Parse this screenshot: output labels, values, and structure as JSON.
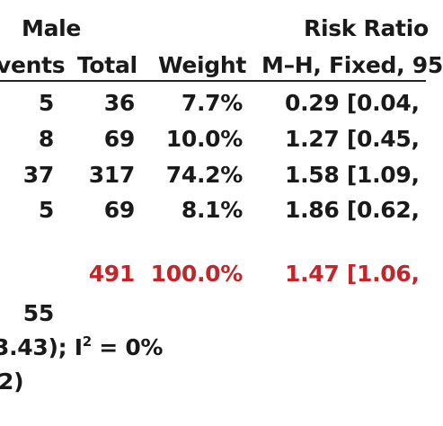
{
  "header": {
    "group_male": "Male",
    "risk_ratio": "Risk Ratio",
    "col_events": "vents",
    "col_total": "Total",
    "col_weight": "Weight",
    "col_method": "M–H, Fixed, 95"
  },
  "rows": [
    {
      "events": "5",
      "total": "36",
      "weight": "7.7%",
      "rr": "0.29 [0.04,"
    },
    {
      "events": "8",
      "total": "69",
      "weight": "10.0%",
      "rr": "1.27 [0.45,"
    },
    {
      "events": "37",
      "total": "317",
      "weight": "74.2%",
      "rr": "1.58 [1.09,"
    },
    {
      "events": "5",
      "total": "69",
      "weight": "8.1%",
      "rr": "1.86 [0.62,"
    }
  ],
  "total_row": {
    "total": "491",
    "weight": "100.0%",
    "rr": "1.47 [1.06,"
  },
  "footer": {
    "events_total": "55",
    "heterogeneity_prefix": "3.43); I",
    "heterogeneity_sup": "2",
    "heterogeneity_suffix": " = 0%",
    "overall_effect": "2)"
  },
  "colors": {
    "text": "#1a1a1a",
    "total_highlight": "#c0262b",
    "rule": "#222222"
  }
}
